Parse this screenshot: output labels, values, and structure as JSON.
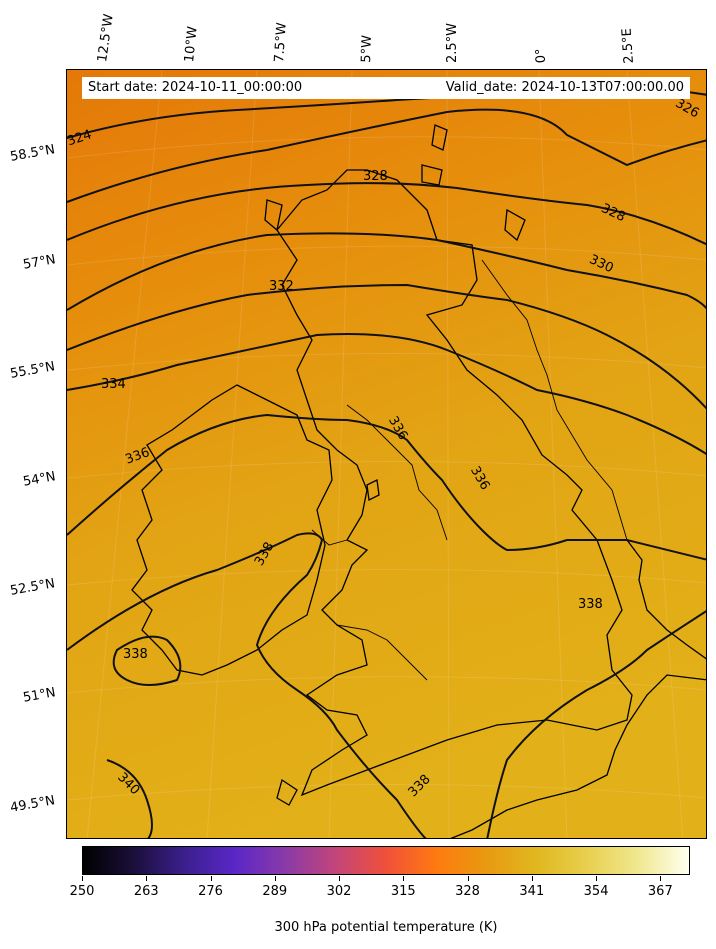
{
  "map": {
    "start_date": "Start date: 2024-10-11_00:00:00",
    "valid_date": "Valid_date: 2024-10-13T07:00:00.00",
    "lon_labels": [
      "12.5°W",
      "10°W",
      "7.5°W",
      "5°W",
      "2.5°W",
      "0°",
      "2.5°E"
    ],
    "lat_labels": [
      "58.5°N",
      "57°N",
      "55.5°N",
      "54°N",
      "52.5°N",
      "51°N",
      "49.5°N"
    ],
    "contour_labels": [
      "324",
      "326",
      "328",
      "328",
      "330",
      "332",
      "334",
      "336",
      "336",
      "336",
      "338",
      "338",
      "338",
      "338",
      "340"
    ],
    "colorbar": {
      "label": "300 hPa potential temperature (K)",
      "ticks": [
        "250",
        "263",
        "276",
        "289",
        "302",
        "315",
        "328",
        "341",
        "354",
        "367"
      ],
      "range": [
        250,
        373
      ],
      "colors": [
        "#000000",
        "#1a0f3a",
        "#3b1f8c",
        "#5a27c7",
        "#8a3aa8",
        "#c2457a",
        "#f0503a",
        "#ff7a10",
        "#e89a10",
        "#e0b820",
        "#e8d050",
        "#f0e890",
        "#fffff0"
      ]
    },
    "field_colors": [
      "#e47a08",
      "#e68e0c",
      "#e2a414",
      "#e2ae18"
    ]
  }
}
